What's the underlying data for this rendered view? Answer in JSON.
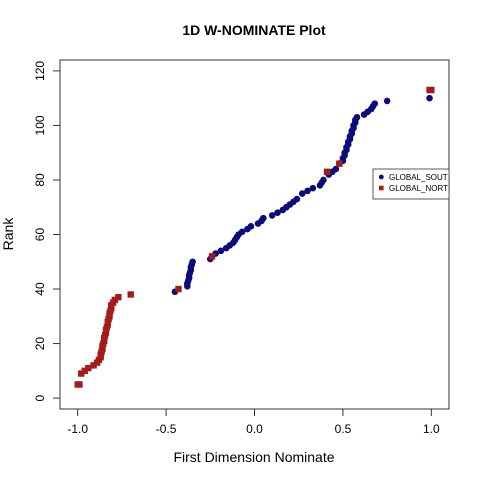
{
  "chart_data": {
    "type": "scatter",
    "title": "1D W-NOMINATE Plot",
    "xlabel": "First Dimension Nominate",
    "ylabel": "Rank",
    "xlim": [
      -1.1,
      1.1
    ],
    "ylim": [
      -4,
      124
    ],
    "x_ticks": [
      -1.0,
      -0.5,
      0.0,
      0.5,
      1.0
    ],
    "x_tick_labels": [
      "-1.0",
      "-0.5",
      "0.0",
      "0.5",
      "1.0"
    ],
    "y_ticks": [
      0,
      20,
      40,
      60,
      80,
      100,
      120
    ],
    "y_tick_labels": [
      "0",
      "20",
      "40",
      "60",
      "80",
      "100",
      "120"
    ],
    "grid": false,
    "legend_position": "right",
    "series": [
      {
        "name": "GLOBAL_SOUTH",
        "display_name": "GLOBAL_SOUT",
        "color": "#0b0b7a",
        "marker": "circle",
        "points": [
          [
            -0.45,
            39
          ],
          [
            -0.38,
            41
          ],
          [
            -0.38,
            42
          ],
          [
            -0.375,
            43
          ],
          [
            -0.37,
            44
          ],
          [
            -0.37,
            45
          ],
          [
            -0.365,
            46
          ],
          [
            -0.36,
            47
          ],
          [
            -0.36,
            48
          ],
          [
            -0.355,
            49
          ],
          [
            -0.35,
            50
          ],
          [
            -0.25,
            51
          ],
          [
            -0.22,
            53
          ],
          [
            -0.19,
            54
          ],
          [
            -0.16,
            55
          ],
          [
            -0.14,
            56
          ],
          [
            -0.12,
            57
          ],
          [
            -0.11,
            58
          ],
          [
            -0.1,
            59
          ],
          [
            -0.09,
            60
          ],
          [
            -0.07,
            61
          ],
          [
            -0.04,
            62
          ],
          [
            -0.02,
            63
          ],
          [
            0.02,
            64
          ],
          [
            0.04,
            65
          ],
          [
            0.05,
            66
          ],
          [
            0.1,
            67
          ],
          [
            0.13,
            68
          ],
          [
            0.16,
            69
          ],
          [
            0.18,
            70
          ],
          [
            0.2,
            71
          ],
          [
            0.22,
            72
          ],
          [
            0.24,
            73
          ],
          [
            0.27,
            75
          ],
          [
            0.3,
            76
          ],
          [
            0.33,
            77
          ],
          [
            0.37,
            78
          ],
          [
            0.38,
            79
          ],
          [
            0.39,
            80
          ],
          [
            0.42,
            82
          ],
          [
            0.44,
            83
          ],
          [
            0.46,
            84
          ],
          [
            0.48,
            86
          ],
          [
            0.5,
            87
          ],
          [
            0.5,
            88
          ],
          [
            0.51,
            89
          ],
          [
            0.51,
            90
          ],
          [
            0.52,
            91
          ],
          [
            0.52,
            92
          ],
          [
            0.53,
            93
          ],
          [
            0.53,
            94
          ],
          [
            0.54,
            95
          ],
          [
            0.54,
            96
          ],
          [
            0.55,
            97
          ],
          [
            0.55,
            98
          ],
          [
            0.56,
            99
          ],
          [
            0.56,
            100
          ],
          [
            0.57,
            101
          ],
          [
            0.57,
            102
          ],
          [
            0.58,
            103
          ],
          [
            0.62,
            104
          ],
          [
            0.64,
            105
          ],
          [
            0.66,
            106
          ],
          [
            0.67,
            107
          ],
          [
            0.68,
            108
          ],
          [
            0.75,
            109
          ],
          [
            0.99,
            110
          ]
        ]
      },
      {
        "name": "GLOBAL_NORTH",
        "display_name": "GLOBAL_NORT",
        "color": "#a31c1c",
        "marker": "square",
        "points": [
          [
            -1.0,
            5
          ],
          [
            -0.99,
            5
          ],
          [
            -0.98,
            9
          ],
          [
            -0.96,
            10
          ],
          [
            -0.94,
            11
          ],
          [
            -0.91,
            12
          ],
          [
            -0.89,
            13
          ],
          [
            -0.88,
            14
          ],
          [
            -0.87,
            15
          ],
          [
            -0.87,
            16
          ],
          [
            -0.865,
            17
          ],
          [
            -0.86,
            18
          ],
          [
            -0.86,
            19
          ],
          [
            -0.855,
            20
          ],
          [
            -0.85,
            21
          ],
          [
            -0.85,
            22
          ],
          [
            -0.845,
            23
          ],
          [
            -0.84,
            24
          ],
          [
            -0.84,
            25
          ],
          [
            -0.835,
            26
          ],
          [
            -0.83,
            27
          ],
          [
            -0.83,
            28
          ],
          [
            -0.825,
            29
          ],
          [
            -0.82,
            30
          ],
          [
            -0.82,
            31
          ],
          [
            -0.815,
            32
          ],
          [
            -0.81,
            33
          ],
          [
            -0.81,
            34
          ],
          [
            -0.8,
            35
          ],
          [
            -0.79,
            36
          ],
          [
            -0.77,
            37
          ],
          [
            -0.7,
            38
          ],
          [
            -0.43,
            40
          ],
          [
            -0.24,
            52
          ],
          [
            0.41,
            83
          ],
          [
            0.48,
            86
          ],
          [
            0.99,
            113
          ],
          [
            1.0,
            113
          ]
        ]
      }
    ]
  }
}
